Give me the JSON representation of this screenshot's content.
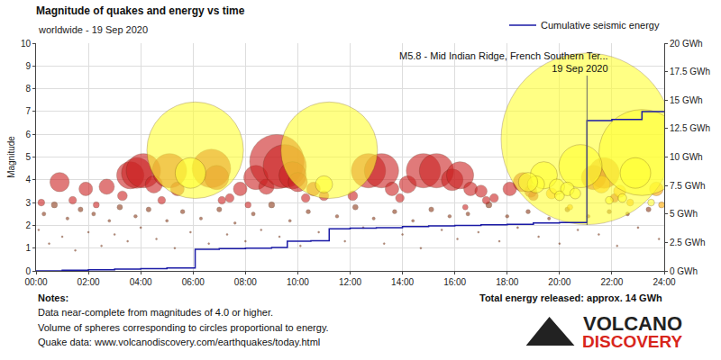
{
  "chart_data": {
    "type": "scatter",
    "title": "Magnitude of quakes and energy vs time",
    "subtitle": "worldwide - 19 Sep 2020",
    "y_label": "Magnitude",
    "grid": true,
    "legend": "top right",
    "xlim": [
      0,
      24
    ],
    "xticks": [
      {
        "value": 0,
        "label": "00:00"
      },
      {
        "value": 2,
        "label": "02:00"
      },
      {
        "value": 4,
        "label": "04:00"
      },
      {
        "value": 6,
        "label": "06:00"
      },
      {
        "value": 8,
        "label": "08:00"
      },
      {
        "value": 10,
        "label": "10:00"
      },
      {
        "value": 12,
        "label": "12:00"
      },
      {
        "value": 14,
        "label": "14:00"
      },
      {
        "value": 16,
        "label": "16:00"
      },
      {
        "value": 18,
        "label": "18:00"
      },
      {
        "value": 20,
        "label": "20:00"
      },
      {
        "value": 22,
        "label": "22:00"
      },
      {
        "value": 24,
        "label": "24:00"
      }
    ],
    "ylim": [
      0,
      10
    ],
    "yticks": [
      0,
      1,
      2,
      3,
      4,
      5,
      6,
      7,
      8,
      9,
      10
    ],
    "y2lim": [
      0,
      20
    ],
    "y2ticks": [
      {
        "value": 0,
        "label": "0 GWh"
      },
      {
        "value": 2.5,
        "label": "2.5 GWh"
      },
      {
        "value": 5,
        "label": "5 GWh"
      },
      {
        "value": 7.5,
        "label": "7.5 GWh"
      },
      {
        "value": 10,
        "label": "10 GWh"
      },
      {
        "value": 12.5,
        "label": "12.5 GWh"
      },
      {
        "value": 15,
        "label": "15 GWh"
      },
      {
        "value": 17.5,
        "label": "17.5 GWh"
      },
      {
        "value": 20,
        "label": "20 GWh"
      }
    ],
    "series": [
      {
        "type": "scatter",
        "marker": "circle",
        "color": "#8b3a1a",
        "x": [
          0.1,
          0.3,
          0.5,
          0.7,
          1.0,
          1.2,
          1.5,
          1.7,
          2.0,
          2.2,
          2.5,
          2.8,
          3.0,
          3.2,
          3.5,
          3.8,
          4.0,
          4.3,
          4.6,
          5.0,
          5.3,
          5.6,
          5.9,
          6.3,
          6.6,
          7.0,
          7.3,
          7.6,
          8.0,
          8.3,
          8.6,
          9.0,
          9.3,
          9.7,
          10.1,
          10.4,
          10.8,
          11.5,
          11.8,
          12.2,
          12.5,
          12.9,
          13.3,
          13.7,
          14.0,
          14.4,
          14.7,
          15.1,
          15.5,
          15.8,
          16.1,
          16.5,
          16.9,
          17.3,
          17.7,
          18.0,
          18.4,
          18.8,
          19.2,
          19.6,
          20.0,
          20.3,
          20.7,
          21.1,
          21.5,
          21.9,
          22.2,
          22.6,
          23.0,
          23.4,
          23.8
        ],
        "values": [
          1.8,
          2.5,
          1.2,
          2.9,
          1.5,
          2.3,
          0.9,
          2.7,
          1.7,
          2.5,
          1.1,
          2.2,
          1.6,
          2.8,
          1.3,
          2.4,
          1.9,
          2.7,
          1.4,
          2.2,
          1.0,
          2.6,
          1.7,
          2.3,
          1.2,
          2.7,
          1.6,
          2.1,
          1.3,
          2.5,
          1.8,
          2.9,
          1.5,
          2.2,
          1.1,
          2.6,
          1.7,
          2.4,
          1.3,
          2.8,
          1.9,
          2.3,
          1.2,
          2.6,
          1.6,
          2.2,
          1.0,
          2.7,
          1.8,
          2.4,
          1.4,
          2.5,
          1.7,
          2.9,
          1.3,
          2.4,
          1.9,
          2.6,
          1.5,
          2.3,
          1.2,
          2.7,
          1.8,
          2.4,
          1.6,
          2.6,
          1.1,
          2.5,
          1.9,
          2.7,
          1.4
        ]
      },
      {
        "type": "scatter",
        "marker": "circle",
        "color": "#cc2222",
        "x": [
          0.9,
          1.9,
          2.7,
          3.3,
          3.6,
          3.85,
          4.1,
          4.5,
          5.1,
          5.4,
          6.7,
          6.9,
          7.4,
          7.8,
          8.4,
          8.8,
          9.2,
          9.5,
          9.8,
          10.0,
          10.6,
          11.0,
          12.7,
          13.2,
          13.6,
          14.2,
          14.8,
          15.3,
          15.9,
          16.2,
          16.6,
          17.0,
          17.5,
          18.1,
          18.6,
          18.9,
          21.3,
          21.7,
          22.1,
          0.2,
          1.4,
          2.3,
          4.8,
          7.1,
          8.1,
          10.3,
          12.1,
          13.9,
          16.4,
          17.2,
          19.0
        ],
        "values": [
          3.9,
          3.6,
          3.7,
          3.3,
          4.2,
          4.3,
          4.4,
          3.8,
          4.4,
          3.6,
          4.5,
          4.1,
          3.2,
          3.6,
          4.1,
          3.7,
          4.8,
          4.6,
          4.2,
          3.9,
          3.6,
          3.3,
          4.4,
          4.4,
          3.6,
          3.8,
          4.4,
          4.4,
          4.0,
          4.2,
          3.6,
          3.5,
          3.2,
          3.6,
          3.9,
          3.5,
          4.1,
          4.3,
          3.2,
          3.0,
          3.1,
          2.9,
          3.1,
          3.1,
          2.9,
          3.2,
          3.3,
          3.2,
          2.8,
          3.1,
          3.3
        ]
      },
      {
        "type": "scatter",
        "marker": "circle",
        "color": "#ffaa00",
        "x": [
          21.6,
          22.3,
          23.7,
          19.7,
          20.4,
          22.7,
          23.9
        ],
        "values": [
          3.8,
          3.5,
          3.6,
          3.4,
          2.8,
          3.0,
          2.9
        ]
      },
      {
        "type": "scatter",
        "marker": "circle",
        "color": "#ffff33",
        "x": [
          6.08,
          11.2,
          21.05,
          23.15,
          5.9,
          19.4,
          20.8,
          22.9,
          19.9,
          20.3,
          19.1,
          18.8,
          20.6,
          21.9,
          22.4,
          23.5,
          20.0,
          11.0
        ],
        "values": [
          5.3,
          5.3,
          5.8,
          5.2,
          4.3,
          4.2,
          4.6,
          4.3,
          3.7,
          3.6,
          3.8,
          3.9,
          3.4,
          3.1,
          3.2,
          3.0,
          3.3,
          3.8
        ]
      },
      {
        "name": "Cumulative seismic energy",
        "type": "line",
        "line_style": "step",
        "axis": "y2",
        "color": "#1a1aa6",
        "x": [
          0,
          1,
          2,
          3,
          4,
          5,
          6.08,
          7,
          8,
          9,
          9.6,
          10.5,
          11.2,
          12,
          13,
          14,
          15,
          16,
          17,
          18,
          19,
          20,
          21.05,
          22,
          23.15,
          24
        ],
        "values": [
          0,
          0.05,
          0.1,
          0.15,
          0.2,
          0.25,
          1.9,
          1.95,
          2.0,
          2.05,
          2.6,
          2.65,
          3.7,
          3.75,
          3.8,
          3.9,
          3.95,
          4.0,
          4.05,
          4.1,
          4.2,
          4.25,
          13.2,
          13.3,
          14.0,
          14.0
        ]
      }
    ],
    "annotations": [
      {
        "text": [
          "M5.8 - Mid Indian Ridge, French Southern Ter...",
          "19 Sep 2020"
        ],
        "x": 21.05,
        "y": 5.8
      }
    ],
    "notes": {
      "title": "Notes:",
      "lines": [
        "Data near-complete from magnitudes of 4.0 or higher.",
        "Volume of spheres corresponding to circles proportional to energy.",
        "Quake data: www.volcanodiscovery.com/earthquakes/today.html"
      ]
    },
    "total_energy": "Total energy released: approx. 14 GWh",
    "logo": [
      "VOLCANO",
      "DISCOVERY"
    ]
  }
}
